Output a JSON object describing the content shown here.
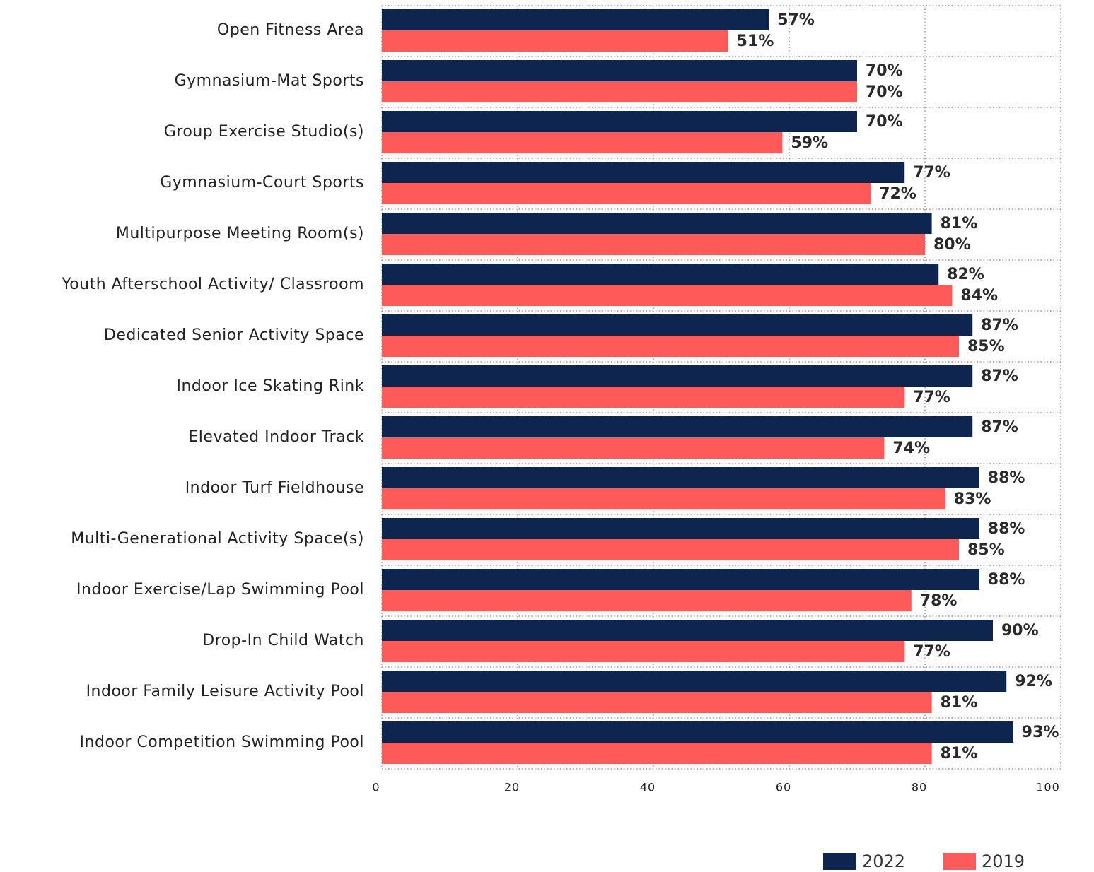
{
  "chart_data": {
    "type": "bar",
    "orientation": "horizontal",
    "categories": [
      "Open Fitness Area",
      "Gymnasium-Mat Sports",
      "Group Exercise Studio(s)",
      "Gymnasium-Court Sports",
      "Multipurpose Meeting Room(s)",
      "Youth Afterschool Activity/ Classroom",
      "Dedicated Senior Activity Space",
      "Indoor Ice Skating Rink",
      "Elevated Indoor Track",
      "Indoor Turf Fieldhouse",
      "Multi-Generational Activity Space(s)",
      "Indoor Exercise/Lap Swimming Pool",
      "Drop-In Child Watch",
      "Indoor Family Leisure Activity Pool",
      "Indoor Competition Swimming Pool"
    ],
    "series": [
      {
        "name": "2022",
        "color": "#0e264f",
        "values": [
          57,
          70,
          70,
          77,
          81,
          82,
          87,
          87,
          87,
          88,
          88,
          88,
          90,
          92,
          93
        ],
        "value_labels": [
          "57%",
          "70%",
          "70%",
          "77%",
          "81%",
          "82%",
          "87%",
          "87%",
          "87%",
          "88%",
          "88%",
          "88%",
          "90%",
          "92%",
          "93%"
        ]
      },
      {
        "name": "2019",
        "color": "#ff5a5a",
        "values": [
          51,
          70,
          59,
          72,
          80,
          84,
          85,
          77,
          74,
          83,
          85,
          78,
          77,
          81,
          81
        ],
        "value_labels": [
          "51%",
          "70%",
          "59%",
          "72%",
          "80%",
          "84%",
          "85%",
          "77%",
          "74%",
          "83%",
          "85%",
          "78%",
          "77%",
          "81%",
          "81%"
        ]
      }
    ],
    "xlim": [
      0,
      100
    ],
    "xticks": [
      0,
      20,
      40,
      60,
      80,
      100
    ],
    "grid": true,
    "legend": "bottom-right"
  }
}
